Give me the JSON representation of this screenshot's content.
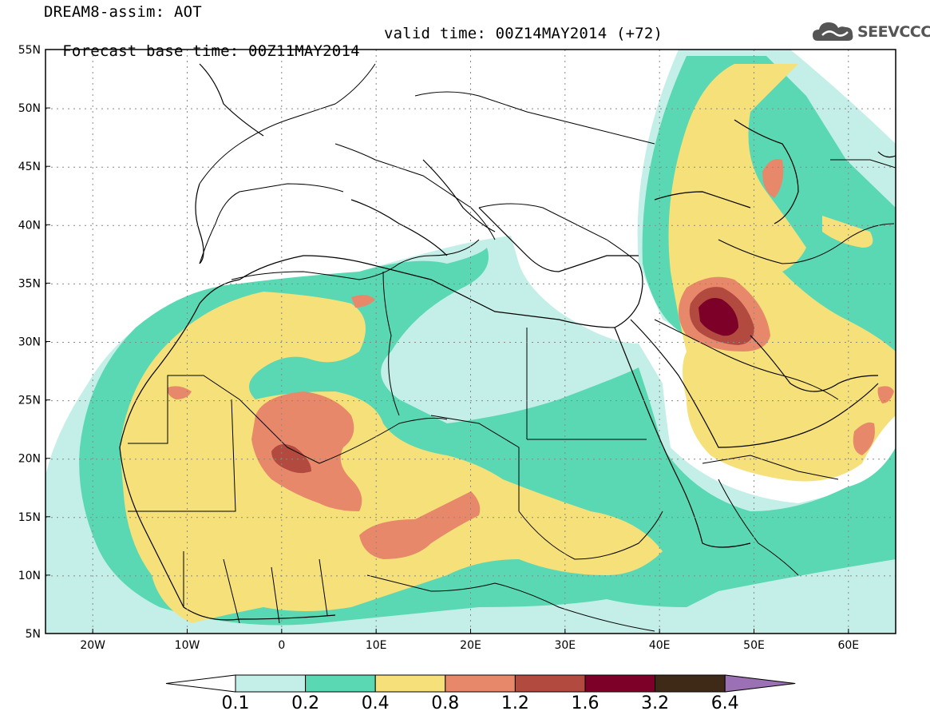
{
  "header": {
    "title": "DREAM8-assim: AOT",
    "base_time": "Forecast base time: 00Z11MAY2014",
    "valid_time": "valid time: 00Z14MAY2014 (+72)",
    "logo_text": "SEEVCCC"
  },
  "axes": {
    "lat_labels": [
      "55N",
      "50N",
      "45N",
      "40N",
      "35N",
      "30N",
      "25N",
      "20N",
      "15N",
      "10N",
      "5N"
    ],
    "lat_values": [
      55,
      50,
      45,
      40,
      35,
      30,
      25,
      20,
      15,
      10,
      5
    ],
    "lon_labels": [
      "20W",
      "10W",
      "0",
      "10E",
      "20E",
      "30E",
      "40E",
      "50E",
      "60E"
    ],
    "lon_values": [
      -20,
      -10,
      0,
      10,
      20,
      30,
      40,
      50,
      60
    ],
    "lon_range": [
      -25,
      65
    ],
    "lat_range": [
      5,
      55
    ]
  },
  "colorbar": {
    "labels": [
      "0.1",
      "0.2",
      "0.4",
      "0.8",
      "1.2",
      "1.6",
      "3.2",
      "6.4"
    ],
    "colors": [
      "#c4efe8",
      "#5ad8b3",
      "#f5e07a",
      "#e8886a",
      "#b24a40",
      "#7c0027",
      "#3f2a17"
    ],
    "under_color": "#ffffff",
    "over_color": "#9b70b4"
  },
  "colors": {
    "border": "#000000",
    "grid": "#888888"
  }
}
